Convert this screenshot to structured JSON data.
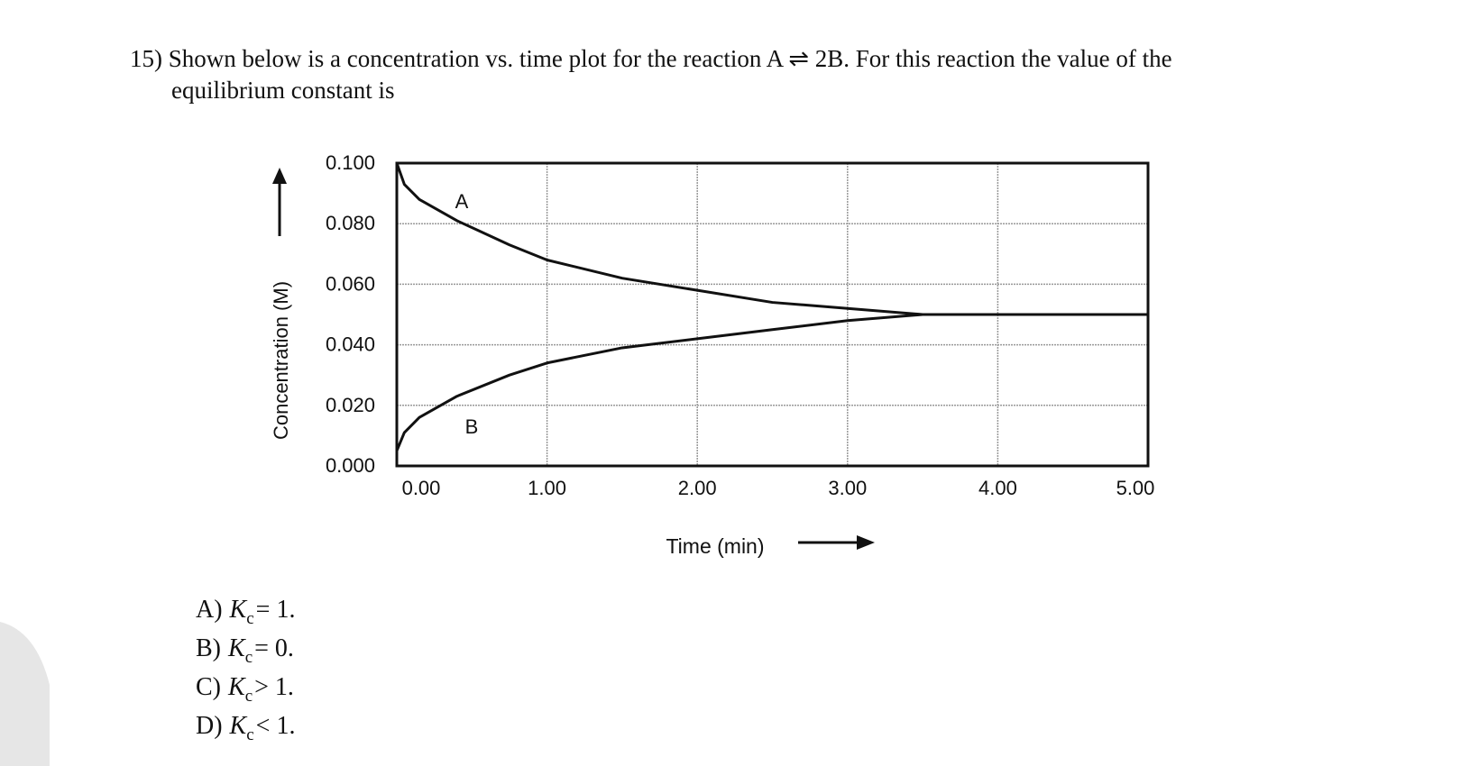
{
  "question": {
    "lines": [
      "15) Shown below is a concentration vs. time plot for the reaction A ⇌ 2B.  For this reaction the value of the",
      "equilibrium constant is"
    ]
  },
  "chart_data": {
    "type": "line",
    "xlabel": "Time (min)",
    "ylabel": "Concentration (M)",
    "x": [
      0,
      0.05,
      0.15,
      0.4,
      0.75,
      1.0,
      1.5,
      2.0,
      2.5,
      3.0,
      3.5,
      4.0,
      5.0
    ],
    "series": [
      {
        "name": "A",
        "color": "#111111",
        "values": [
          0.1,
          0.093,
          0.088,
          0.081,
          0.073,
          0.068,
          0.062,
          0.058,
          0.054,
          0.052,
          0.05,
          0.05,
          0.05
        ]
      },
      {
        "name": "B",
        "color": "#111111",
        "values": [
          0.005,
          0.011,
          0.016,
          0.023,
          0.03,
          0.034,
          0.039,
          0.042,
          0.045,
          0.048,
          0.05,
          0.05,
          0.05
        ]
      }
    ],
    "xlim": [
      0,
      5
    ],
    "xticks": [
      {
        "value": 0,
        "label": "0.00"
      },
      {
        "value": 1,
        "label": "1.00"
      },
      {
        "value": 2,
        "label": "2.00"
      },
      {
        "value": 3,
        "label": "3.00"
      },
      {
        "value": 4,
        "label": "4.00"
      },
      {
        "value": 5,
        "label": "5.00"
      }
    ],
    "ylim": [
      0,
      0.1
    ],
    "yticks": [
      {
        "value": 0,
        "label": "0.000"
      },
      {
        "value": 0.02,
        "label": "0.020"
      },
      {
        "value": 0.04,
        "label": "0.040"
      },
      {
        "value": 0.06,
        "label": "0.060"
      },
      {
        "value": 0.08,
        "label": "0.080"
      },
      {
        "value": 0.1,
        "label": "0.100"
      }
    ],
    "grid": true
  },
  "choices": [
    {
      "letter": "A)",
      "symbol": "K",
      "subscript": "c",
      "relation": "= 1."
    },
    {
      "letter": "B)",
      "symbol": "K",
      "subscript": "c",
      "relation": "= 0."
    },
    {
      "letter": "C)",
      "symbol": "K",
      "subscript": "c",
      "relation": "> 1."
    },
    {
      "letter": "D)",
      "symbol": "K",
      "subscript": "c",
      "relation": "< 1."
    }
  ]
}
